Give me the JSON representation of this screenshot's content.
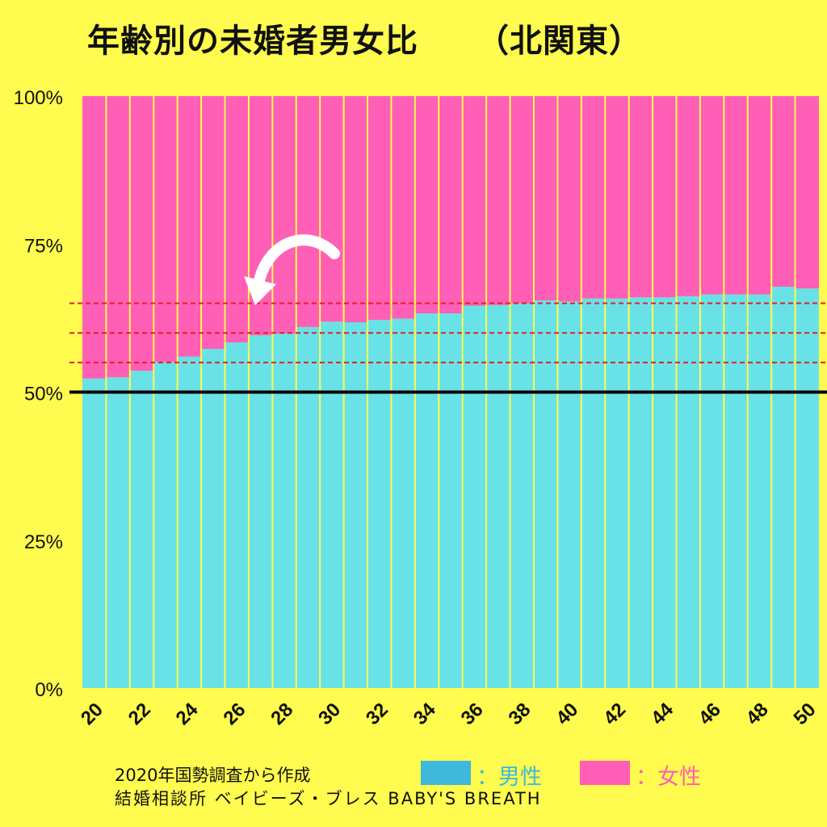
{
  "title": "年齢別の未婚者男女比",
  "region": "（北関東）",
  "colors": {
    "background": "#FFFB4F",
    "male": "#68E2E6",
    "female": "#FF5FB6",
    "legend_male": "#3EB8DB",
    "legend_female": "#FF5FB6",
    "separator": "#FFFB4F",
    "reference": "#E0202A",
    "baseline": "#000000"
  },
  "chart_data": {
    "type": "bar",
    "stacked": true,
    "normalized": true,
    "title": "年齢別の未婚者男女比",
    "subtitle": "（北関東）",
    "x": [
      20,
      21,
      22,
      23,
      24,
      25,
      26,
      27,
      28,
      29,
      30,
      31,
      32,
      33,
      34,
      35,
      36,
      37,
      38,
      39,
      40,
      41,
      42,
      43,
      44,
      45,
      46,
      47,
      48,
      49,
      50
    ],
    "x_tick_labels": [
      "20",
      "22",
      "24",
      "26",
      "28",
      "30",
      "32",
      "34",
      "36",
      "38",
      "40",
      "42",
      "44",
      "46",
      "48",
      "50"
    ],
    "y_tick_labels": [
      "0%",
      "25%",
      "50%",
      "75%",
      "100%"
    ],
    "ylim": [
      0,
      100
    ],
    "series": [
      {
        "name": "男性",
        "values": [
          52.3,
          52.5,
          53.6,
          55.1,
          56.0,
          57.3,
          58.4,
          59.6,
          59.9,
          61.0,
          61.9,
          61.8,
          62.2,
          62.4,
          63.3,
          63.3,
          64.6,
          64.7,
          65.0,
          65.5,
          65.3,
          65.8,
          65.8,
          66.0,
          66.0,
          66.2,
          66.5,
          66.5,
          66.5,
          67.8,
          67.5
        ]
      },
      {
        "name": "女性",
        "values": [
          47.7,
          47.5,
          46.4,
          44.9,
          44.0,
          42.7,
          41.6,
          40.4,
          40.1,
          39.0,
          38.1,
          38.2,
          37.8,
          37.6,
          36.7,
          36.7,
          35.4,
          35.3,
          35.0,
          34.5,
          34.7,
          34.2,
          34.2,
          34.0,
          34.0,
          33.8,
          33.5,
          33.5,
          33.5,
          32.2,
          32.5
        ]
      }
    ],
    "reference_lines": [
      {
        "y": 50,
        "style": "solid",
        "color": "#000000"
      },
      {
        "y": 55,
        "style": "dashed",
        "color": "#E0202A"
      },
      {
        "y": 60,
        "style": "dashed",
        "color": "#E0202A"
      },
      {
        "y": 65,
        "style": "dashed",
        "color": "#E0202A"
      }
    ],
    "annotation": "curved-arrow pointing to 男性 crossing 60% around age 27"
  },
  "legend": {
    "male_label": "：男性",
    "female_label": "：女性"
  },
  "footer": {
    "source": "2020年国勢調査から作成",
    "credit": "結婚相談所 ベイビーズ・ブレス BABY'S BREATH"
  }
}
